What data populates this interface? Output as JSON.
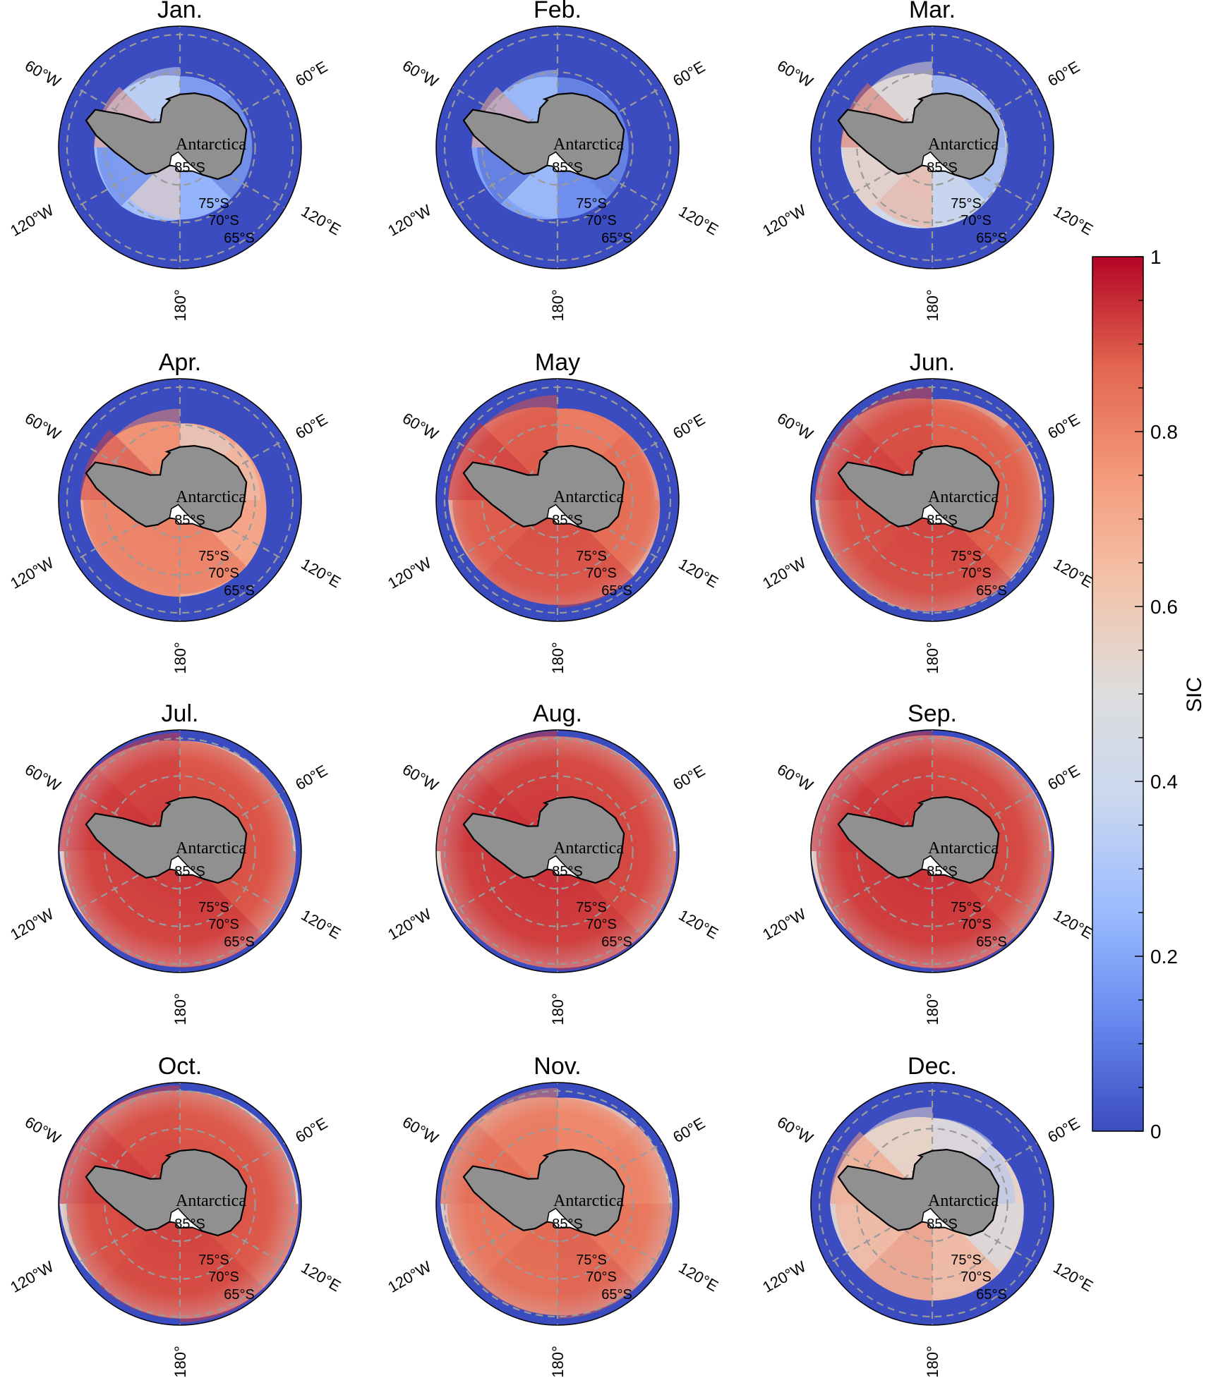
{
  "panels": [
    {
      "title": "Jan.",
      "fill": [
        0.75,
        0.4,
        0.1,
        0.05,
        0.05,
        0.2,
        0.6,
        0.1
      ],
      "extent": [
        0.35,
        0.25,
        0.08,
        0.1,
        0.1,
        0.1,
        0.1,
        0.3
      ]
    },
    {
      "title": "Feb.",
      "fill": [
        0.7,
        0.3,
        0.05,
        0.05,
        0.05,
        0.1,
        0.3,
        0.05
      ],
      "extent": [
        0.35,
        0.2,
        0.06,
        0.08,
        0.08,
        0.08,
        0.08,
        0.25
      ]
    },
    {
      "title": "Mar.",
      "fill": [
        0.85,
        0.55,
        0.15,
        0.15,
        0.2,
        0.35,
        0.7,
        0.6
      ],
      "extent": [
        0.45,
        0.35,
        0.1,
        0.12,
        0.15,
        0.18,
        0.25,
        0.4
      ]
    },
    {
      "title": "Apr.",
      "fill": [
        0.92,
        0.8,
        0.5,
        0.6,
        0.7,
        0.85,
        0.85,
        0.85
      ],
      "extent": [
        0.6,
        0.45,
        0.18,
        0.25,
        0.35,
        0.5,
        0.55,
        0.55
      ]
    },
    {
      "title": "May",
      "fill": [
        0.95,
        0.9,
        0.8,
        0.85,
        0.85,
        0.92,
        0.92,
        0.9
      ],
      "extent": [
        0.78,
        0.7,
        0.45,
        0.55,
        0.65,
        0.75,
        0.7,
        0.7
      ]
    },
    {
      "title": "Jun.",
      "fill": [
        0.95,
        0.92,
        0.88,
        0.88,
        0.88,
        0.93,
        0.93,
        0.92
      ],
      "extent": [
        0.92,
        0.85,
        0.62,
        0.75,
        0.8,
        0.82,
        0.82,
        0.85
      ]
    },
    {
      "title": "Jul.",
      "fill": [
        0.96,
        0.94,
        0.9,
        0.9,
        0.9,
        0.95,
        0.94,
        0.94
      ],
      "extent": [
        0.98,
        0.95,
        0.8,
        0.85,
        0.9,
        0.92,
        0.9,
        0.9
      ]
    },
    {
      "title": "Aug.",
      "fill": [
        0.96,
        0.94,
        0.92,
        0.92,
        0.92,
        0.95,
        0.95,
        0.95
      ],
      "extent": [
        1.0,
        0.98,
        0.88,
        0.9,
        0.95,
        0.96,
        0.92,
        0.92
      ]
    },
    {
      "title": "Sep.",
      "fill": [
        0.96,
        0.94,
        0.92,
        0.92,
        0.92,
        0.95,
        0.95,
        0.95
      ],
      "extent": [
        1.0,
        0.98,
        0.9,
        0.92,
        0.96,
        0.96,
        0.92,
        0.9
      ]
    },
    {
      "title": "Oct.",
      "fill": [
        0.95,
        0.92,
        0.9,
        0.9,
        0.9,
        0.93,
        0.93,
        0.92
      ],
      "extent": [
        0.98,
        0.95,
        0.85,
        0.9,
        0.95,
        0.95,
        0.88,
        0.85
      ]
    },
    {
      "title": "Nov.",
      "fill": [
        0.88,
        0.82,
        0.78,
        0.8,
        0.85,
        0.9,
        0.88,
        0.85
      ],
      "extent": [
        0.92,
        0.9,
        0.72,
        0.82,
        0.88,
        0.88,
        0.82,
        0.8
      ]
    },
    {
      "title": "Dec.",
      "fill": [
        0.75,
        0.55,
        0.4,
        0.3,
        0.45,
        0.7,
        0.8,
        0.7
      ],
      "extent": [
        0.65,
        0.55,
        0.35,
        0.3,
        0.45,
        0.55,
        0.55,
        0.55
      ]
    }
  ],
  "map_labels": {
    "continent": "Antarctica",
    "lon_60w": "60°W",
    "lon_60e": "60°E",
    "lon_120w": "120°W",
    "lon_120e": "120°E",
    "lon_180": "180°",
    "lat_85": "85°S",
    "lat_75": "75°S",
    "lat_70": "70°S",
    "lat_65": "65°S"
  },
  "colorbar": {
    "label": "SIC",
    "min": 0,
    "max": 1,
    "ticks": [
      "0",
      "0.2",
      "0.4",
      "0.6",
      "0.8",
      "1"
    ],
    "tick_values": [
      0,
      0.2,
      0.4,
      0.6,
      0.8,
      1
    ],
    "colors": [
      "#3b4cc0",
      "#6788ee",
      "#9abbff",
      "#c9d7f0",
      "#dddddd",
      "#f3c3ab",
      "#f49a7b",
      "#e2654f",
      "#b40426"
    ]
  },
  "colors": {
    "land": "#909090",
    "ice_shelf": "#ffffff",
    "coastline": "#000000",
    "graticule": "#9a9a9a",
    "open_ocean": "#3b4cc0"
  }
}
